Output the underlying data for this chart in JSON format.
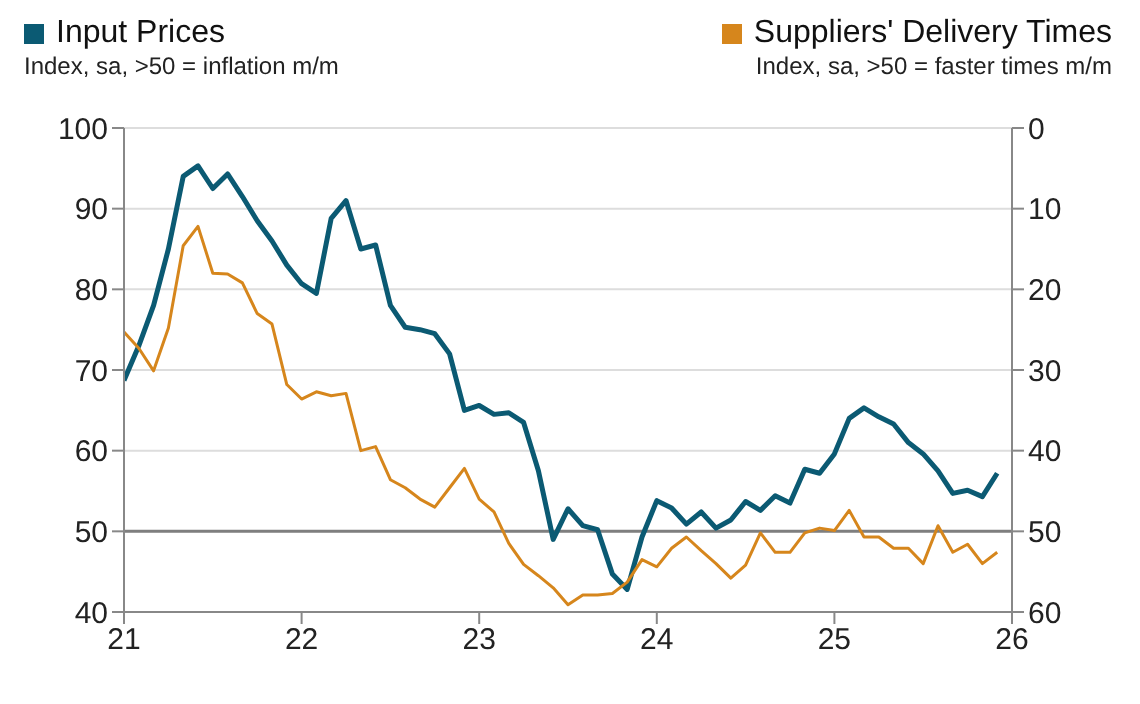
{
  "chart_data": {
    "type": "line",
    "ylabel": "Index, sa, >50 = inflation m/m",
    "y2label": "Index, sa, >50 = faster times m/m",
    "legend": "top",
    "grid": "y",
    "marker": "none",
    "line_style": "solid",
    "x": [
      "2021-01",
      "2021-02",
      "2021-03",
      "2021-04",
      "2021-05",
      "2021-06",
      "2021-07",
      "2021-08",
      "2021-09",
      "2021-10",
      "2021-11",
      "2021-12",
      "2022-01",
      "2022-02",
      "2022-03",
      "2022-04",
      "2022-05",
      "2022-06",
      "2022-07",
      "2022-08",
      "2022-09",
      "2022-10",
      "2022-11",
      "2022-12",
      "2023-01",
      "2023-02",
      "2023-03",
      "2023-04",
      "2023-05",
      "2023-06",
      "2023-07",
      "2023-08",
      "2023-09",
      "2023-10",
      "2023-11",
      "2023-12",
      "2024-01",
      "2024-02",
      "2024-03",
      "2024-04",
      "2024-05",
      "2024-06",
      "2024-07",
      "2024-08",
      "2024-09",
      "2024-10",
      "2024-11",
      "2024-12",
      "2025-01",
      "2025-02",
      "2025-03",
      "2025-04",
      "2025-05",
      "2025-06",
      "2025-07",
      "2025-08",
      "2025-09",
      "2025-10",
      "2025-11",
      "2025-12"
    ],
    "series": [
      {
        "name": "Input Prices",
        "color": "#0b5a73",
        "values": [
          68.7,
          73,
          78,
          85,
          94,
          95.3,
          92.5,
          94.3,
          91.5,
          88.5,
          86,
          83,
          80.7,
          79.5,
          88.8,
          91,
          85,
          85.5,
          78,
          75.3,
          75,
          74.5,
          72,
          65,
          65.6,
          64.5,
          64.7,
          63.5,
          57.5,
          49,
          52.8,
          50.7,
          50.2,
          44.7,
          42.8,
          49.3,
          53.8,
          52.9,
          50.9,
          52.4,
          50.4,
          51.4,
          53.7,
          52.6,
          54.4,
          53.5,
          57.7,
          57.2,
          59.6,
          64,
          65.3,
          64.2,
          63.3,
          61,
          59.6,
          57.5,
          54.7,
          55.1,
          54.3,
          57.2
        ]
      },
      {
        "name": "Suppliers' Delivery Times",
        "color": "#d6861c",
        "axis": "y2",
        "values": [
          25.3,
          27.3,
          30.1,
          24.8,
          14.6,
          12.2,
          18,
          18.1,
          19.2,
          23,
          24.3,
          31.8,
          33.6,
          32.7,
          33.2,
          32.9,
          40,
          39.5,
          43.6,
          44.6,
          46,
          47,
          44.6,
          42.2,
          46,
          47.6,
          51.5,
          54.1,
          55.5,
          57,
          59.1,
          57.9,
          57.9,
          57.7,
          56.3,
          53.5,
          54.4,
          52.1,
          50.7,
          52.4,
          54,
          55.8,
          54.2,
          50.2,
          52.6,
          52.6,
          50.2,
          49.6,
          49.9,
          47.4,
          50.7,
          50.7,
          52.1,
          52.1,
          54,
          49.3,
          52.6,
          51.6,
          54,
          52.6
        ]
      }
    ],
    "xlim": [
      "2021-01",
      "2026-01"
    ],
    "xticks": [
      {
        "value": "2021-01",
        "label": "21"
      },
      {
        "value": "2022-01",
        "label": "22"
      },
      {
        "value": "2023-01",
        "label": "23"
      },
      {
        "value": "2024-01",
        "label": "24"
      },
      {
        "value": "2025-01",
        "label": "25"
      },
      {
        "value": "2026-01",
        "label": "26"
      }
    ],
    "ylim": [
      40,
      100
    ],
    "yticks": [
      40,
      50,
      60,
      70,
      80,
      90,
      100
    ],
    "y2lim": [
      60,
      0
    ],
    "y2ticks": [
      0,
      10,
      20,
      30,
      40,
      50,
      60
    ],
    "ref_lines": [
      {
        "axis": "y",
        "value": 50,
        "color": "#7f7f7f"
      }
    ]
  }
}
